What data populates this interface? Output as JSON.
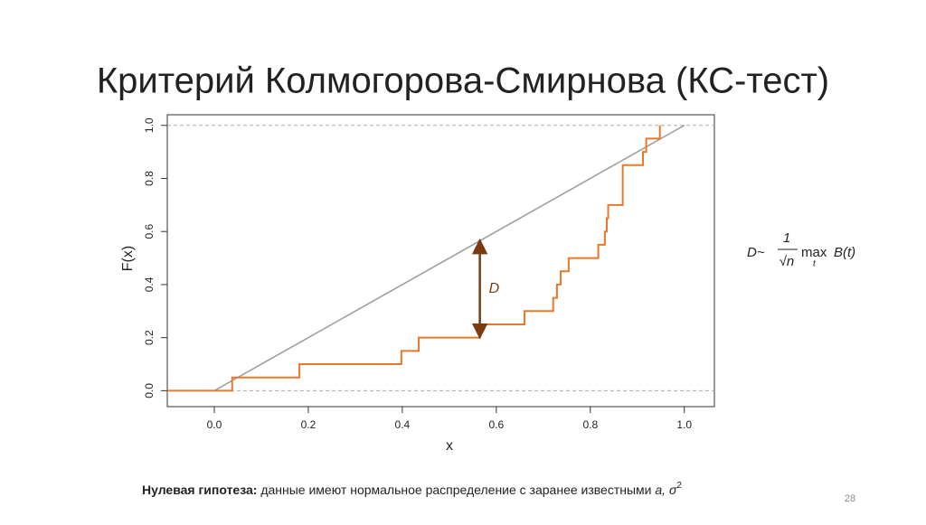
{
  "chart_data": {
    "type": "ecdf",
    "title": "Критерий Колмогорова-Смирнова (КС-тест)",
    "xlabel": "x",
    "ylabel": "F(x)",
    "xlim": [
      -0.1,
      1.064
    ],
    "ylim": [
      -0.06,
      1.04
    ],
    "xticks": [
      {
        "value": 0,
        "label": "0.0"
      },
      0.2,
      0.4,
      0.6,
      0.8,
      {
        "value": 1,
        "label": "1.0"
      }
    ],
    "yticks": [
      {
        "value": 0,
        "label": "0.0"
      },
      0.2,
      0.4,
      0.6,
      0.8,
      {
        "value": 1,
        "label": "1.0"
      }
    ],
    "hlines": [
      0,
      1
    ],
    "series": [
      {
        "kind": "line",
        "color": "#9a9a9a",
        "x": [
          0,
          1
        ],
        "values": [
          0,
          1
        ]
      },
      {
        "kind": "step",
        "color": "#e8782a",
        "x": [
          0.038,
          0.181,
          0.398,
          0.435,
          0.565,
          0.66,
          0.721,
          0.729,
          0.737,
          0.754,
          0.817,
          0.831,
          0.835,
          0.838,
          0.869,
          0.912,
          0.919,
          0.948
        ],
        "values": [
          0.05,
          0.1,
          0.15,
          0.2,
          0.25,
          0.3,
          0.35,
          0.4,
          0.45,
          0.5,
          0.55,
          0.6,
          0.65,
          0.7,
          0.85,
          0.9,
          0.95,
          1.0
        ]
      }
    ],
    "annotation": {
      "label": "D",
      "x": 0.565,
      "y": [
        0.2,
        0.568
      ],
      "color": "#7a3a12"
    }
  },
  "formula": {
    "lhs": "D~",
    "numerator": "1",
    "denominator": "√n",
    "operator": "max",
    "subscript": "t",
    "function": "B(t)"
  },
  "footnote": {
    "bold": "Нулевая гипотеза:",
    "text": "данные имеют нормальное распределение с заранее известными",
    "params": "a, σ",
    "exponent": "2"
  },
  "page_number": "28"
}
